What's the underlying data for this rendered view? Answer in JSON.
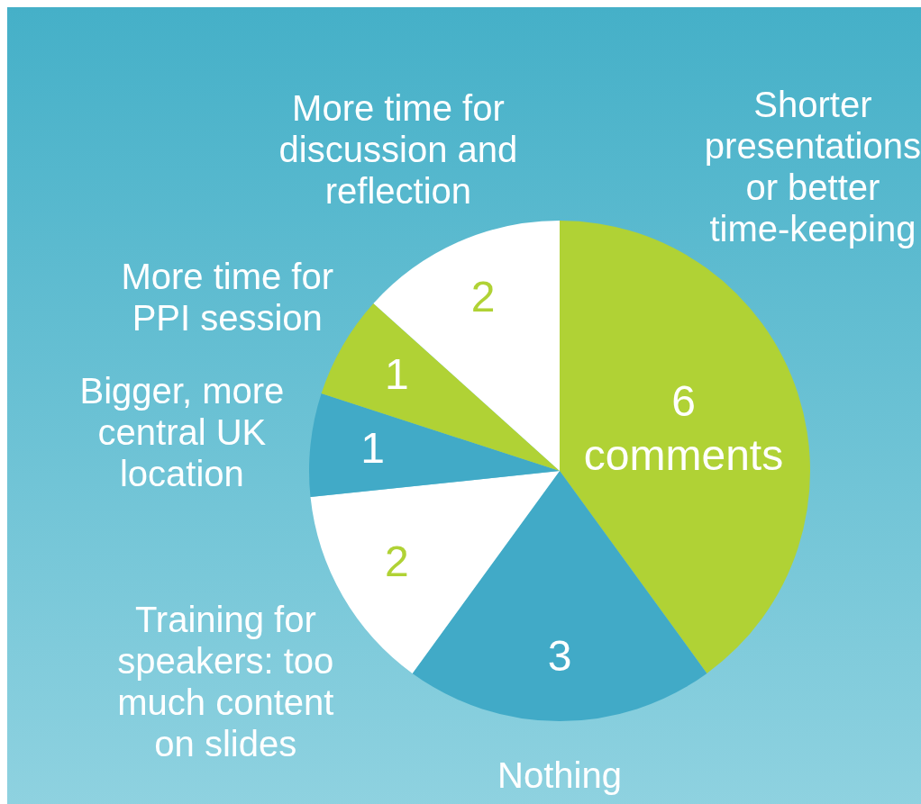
{
  "chart_data": {
    "type": "pie",
    "categories": [
      "Shorter presentations or better time-keeping",
      "Nothing",
      "Training for speakers: too much content on slides",
      "Bigger, more central UK location",
      "More time for PPI session",
      "More time for discussion and reflection"
    ],
    "values": [
      6,
      3,
      2,
      1,
      1,
      2
    ],
    "colors": [
      "#b0d235",
      "#41aac7",
      "#ffffff",
      "#41aac7",
      "#b0d235",
      "#ffffff"
    ],
    "value_labels": [
      "6\ncomments",
      "3",
      "2",
      "1",
      "1",
      "2"
    ],
    "legend": false
  }
}
